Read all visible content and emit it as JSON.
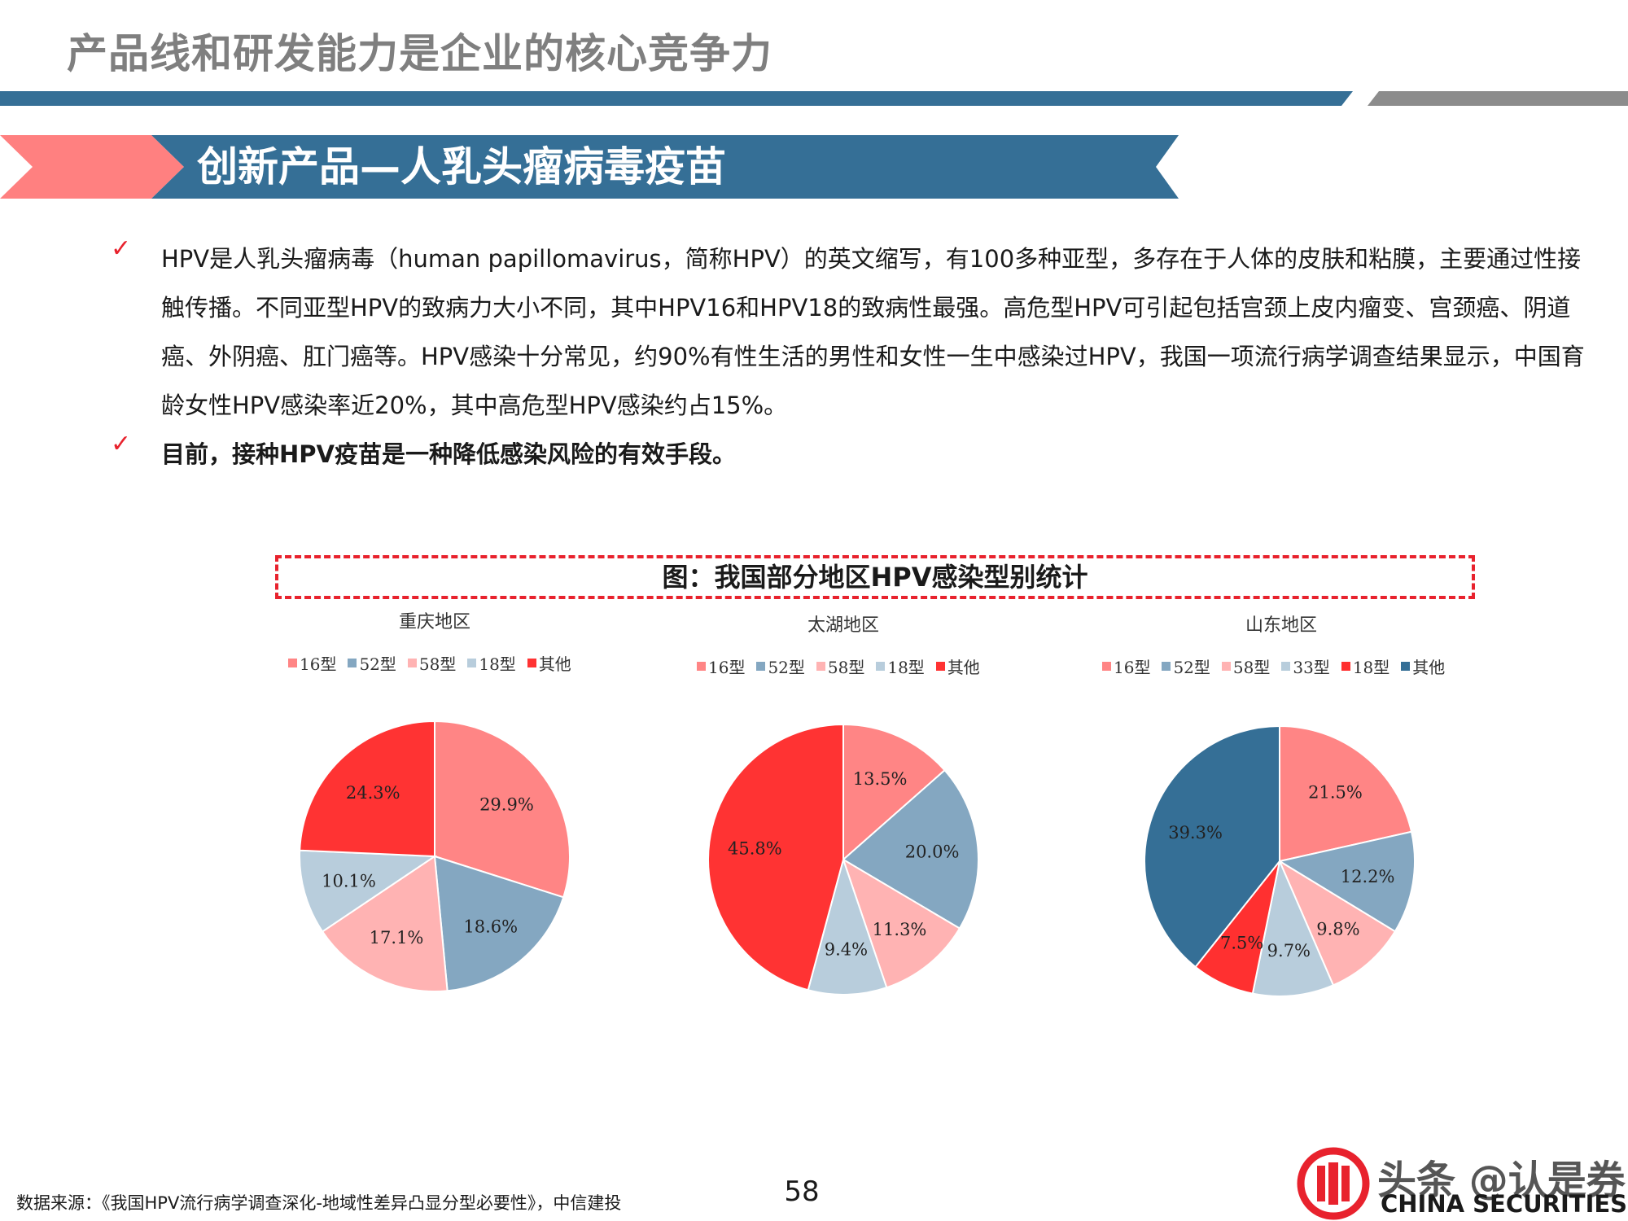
{
  "slide": {
    "title": "产品线和研发能力是企业的核心竞争力",
    "banner": "创新产品—人乳头瘤病毒疫苗",
    "bullets": [
      "HPV是人乳头瘤病毒（human papillomavirus，简称HPV）的英文缩写，有100多种亚型，多存在于人体的皮肤和粘膜，主要通过性接触传播。不同亚型HPV的致病力大小不同，其中HPV16和HPV18的致病性最强。高危型HPV可引起包括宫颈上皮内瘤变、宫颈癌、阴道癌、外阴癌、肛门癌等。HPV感染十分常见，约90%有性生活的男性和女性一生中感染过HPV，我国一项流行病学调查结果显示，中国育龄女性HPV感染率近20%，其中高危型HPV感染约占15%。",
      "目前，接种HPV疫苗是一种降低感染风险的有效手段。"
    ],
    "figure_title": "图：我国部分地区HPV感染型别统计",
    "source": "数据来源：《我国HPV流行病学调查深化-地域性差异凸显分型必要性》，中信建投",
    "page_number": "58",
    "watermark": "头条 @认是券",
    "brand_en": "CHINA SECURITIES",
    "check_glyph": "✓"
  },
  "colors": {
    "title_gray": "#7f7f7f",
    "rule_blue": "#356f96",
    "rule_gray": "#8c8c8c",
    "banner_pink": "#ff8080",
    "banner_blue": "#356f96",
    "accent_red": "#e8222d",
    "slice_16": "#ff8585",
    "slice_52": "#84a7c1",
    "slice_58": "#ffb3b3",
    "slice_18": "#b8cddc",
    "slice_33": "#b8cddc",
    "slice_18_sd": "#ff3030",
    "slice_other_red": "#ff3333",
    "slice_other_blue": "#356f96"
  },
  "chart_data": [
    {
      "type": "pie",
      "title": "重庆地区",
      "legend_position": "top",
      "categories": [
        "16型",
        "52型",
        "58型",
        "18型",
        "其他"
      ],
      "values": [
        29.9,
        18.6,
        17.1,
        10.1,
        24.3
      ],
      "labels": [
        "29.9%",
        "18.6%",
        "17.1%",
        "10.1%",
        "24.3%"
      ],
      "colors": [
        "#ff8585",
        "#84a7c1",
        "#ffb3b3",
        "#b8cddc",
        "#ff3333"
      ]
    },
    {
      "type": "pie",
      "title": "太湖地区",
      "legend_position": "top",
      "categories": [
        "16型",
        "52型",
        "58型",
        "18型",
        "其他"
      ],
      "values": [
        13.5,
        20.0,
        11.3,
        9.4,
        45.8
      ],
      "labels": [
        "13.5%",
        "20.0%",
        "11.3%",
        "9.4%",
        "45.8%"
      ],
      "colors": [
        "#ff8585",
        "#84a7c1",
        "#ffb3b3",
        "#b8cddc",
        "#ff3333"
      ]
    },
    {
      "type": "pie",
      "title": "山东地区",
      "legend_position": "top",
      "categories": [
        "16型",
        "52型",
        "58型",
        "33型",
        "18型",
        "其他"
      ],
      "values": [
        21.5,
        12.2,
        9.8,
        9.7,
        7.5,
        39.3
      ],
      "labels": [
        "21.5%",
        "12.2%",
        "9.8%",
        "9.7%",
        "7.5%",
        "39.3%"
      ],
      "colors": [
        "#ff8585",
        "#84a7c1",
        "#ffb3b3",
        "#b8cddc",
        "#ff3030",
        "#356f96"
      ]
    }
  ]
}
